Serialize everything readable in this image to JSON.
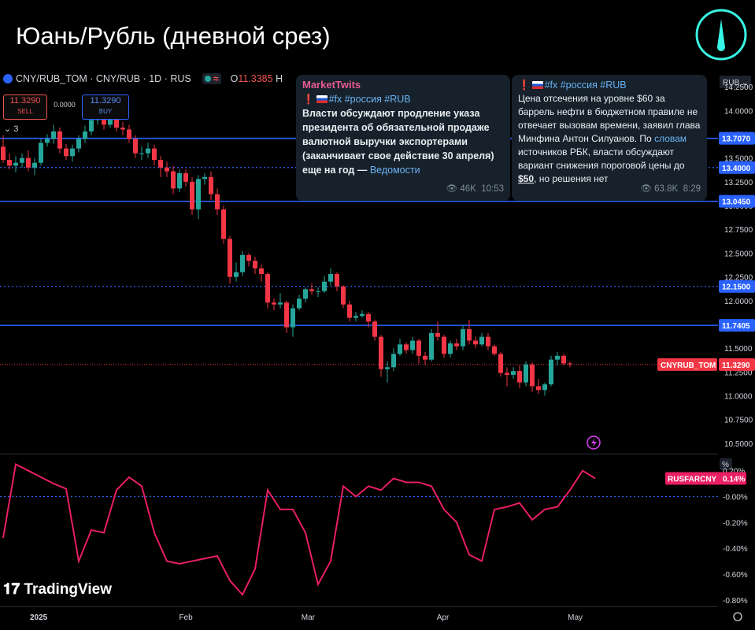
{
  "page_title": "Юань/Рубль (дневной срез)",
  "header": {
    "symbol": "CNY/RUB_TOM · CNY/RUB · 1D · RUS",
    "ohlc_prefix": "O",
    "ohlc_open": "11.3385",
    "ohlc_h": "H"
  },
  "trade": {
    "sell_price": "11.3290",
    "sell_label": "SELL",
    "spread": "0.0000",
    "buy_price": "11.3290",
    "buy_label": "BUY",
    "collapse_count": "3"
  },
  "messages": [
    {
      "author": "MarketTwits",
      "tags": "#fx #россия #RUB",
      "text": "Власти обсуждают продление указа президента об обязательной продаже валютной выручки экспортерами (заканчивает свое действие 30 апреля) еще на год —",
      "link_text": "Ведомости",
      "views": "46K",
      "time": "10:53"
    },
    {
      "tags": "#fx #россия #RUB",
      "text_part1": "Цена отсечения на уровне $60 за баррель нефти в бюджетном правиле не отвечает вызовам времени, заявил глава Минфина Антон Силуанов. По",
      "link_text": "словам",
      "text_part2": "источников РБК, власти обсуждают вариант снижения пороговой цены до",
      "highlight": "$50",
      "text_part3": ", но решения нет",
      "views": "63.8K",
      "time": "8:29"
    }
  ],
  "watermark": "TradingView",
  "colors": {
    "up": "#26a69a",
    "down": "#f23645",
    "level_line": "#2962ff",
    "indicator": "#e91e63",
    "last_price": "#f23645"
  },
  "chart_data": [
    {
      "type": "candlestick",
      "currency": "RUB",
      "ylim": [
        10.4,
        14.4
      ],
      "y_ticks": [
        "14.2500",
        "14.0000",
        "13.7500",
        "13.5000",
        "13.2500",
        "13.0000",
        "12.7500",
        "12.5000",
        "12.2500",
        "12.0000",
        "11.7500",
        "11.5000",
        "11.2500",
        "11.0000",
        "10.7500",
        "10.5000"
      ],
      "x_ticks": [
        {
          "label": "2025",
          "date": "2025-01-01"
        },
        {
          "label": "Feb",
          "date": "2025-02-01"
        },
        {
          "label": "Mar",
          "date": "2025-03-01"
        },
        {
          "label": "Apr",
          "date": "2025-04-01"
        },
        {
          "label": "May",
          "date": "2025-05-01"
        }
      ],
      "levels": [
        {
          "value": 13.707,
          "label": "13.7070",
          "style": "solid"
        },
        {
          "value": 13.4,
          "label": "13.4000",
          "style": "dashed"
        },
        {
          "value": 13.045,
          "label": "13.0450",
          "style": "solid"
        },
        {
          "value": 12.15,
          "label": "12.1500",
          "style": "dashed"
        },
        {
          "value": 11.7405,
          "label": "11.7405",
          "style": "solid"
        }
      ],
      "last_price": {
        "value": 11.329,
        "label": "11.3290",
        "name": "CNYRUB_TOM"
      },
      "candles": [
        {
          "date": "2024-12-26",
          "o": 13.62,
          "h": 13.74,
          "l": 13.45,
          "c": 13.48
        },
        {
          "date": "2024-12-27",
          "o": 13.48,
          "h": 13.55,
          "l": 13.38,
          "c": 13.42
        },
        {
          "date": "2024-12-28",
          "o": 13.42,
          "h": 13.52,
          "l": 13.35,
          "c": 13.45
        },
        {
          "date": "2024-12-30",
          "o": 13.45,
          "h": 13.55,
          "l": 13.4,
          "c": 13.5
        },
        {
          "date": "2025-01-03",
          "o": 13.5,
          "h": 13.58,
          "l": 13.36,
          "c": 13.4
        },
        {
          "date": "2025-01-06",
          "o": 13.4,
          "h": 13.5,
          "l": 13.32,
          "c": 13.45
        },
        {
          "date": "2025-01-08",
          "o": 13.45,
          "h": 13.7,
          "l": 13.42,
          "c": 13.66
        },
        {
          "date": "2025-01-09",
          "o": 13.66,
          "h": 13.75,
          "l": 13.62,
          "c": 13.7
        },
        {
          "date": "2025-01-10",
          "o": 13.7,
          "h": 13.85,
          "l": 13.65,
          "c": 13.78
        },
        {
          "date": "2025-01-13",
          "o": 13.78,
          "h": 13.82,
          "l": 13.55,
          "c": 13.6
        },
        {
          "date": "2025-01-14",
          "o": 13.6,
          "h": 13.65,
          "l": 13.48,
          "c": 13.52
        },
        {
          "date": "2025-01-15",
          "o": 13.52,
          "h": 13.64,
          "l": 13.46,
          "c": 13.6
        },
        {
          "date": "2025-01-16",
          "o": 13.6,
          "h": 13.74,
          "l": 13.56,
          "c": 13.7
        },
        {
          "date": "2025-01-17",
          "o": 13.7,
          "h": 13.84,
          "l": 13.66,
          "c": 13.78
        },
        {
          "date": "2025-01-20",
          "o": 13.78,
          "h": 13.95,
          "l": 13.74,
          "c": 13.9
        },
        {
          "date": "2025-01-21",
          "o": 13.9,
          "h": 14.0,
          "l": 13.85,
          "c": 13.95
        },
        {
          "date": "2025-01-22",
          "o": 13.95,
          "h": 13.98,
          "l": 13.8,
          "c": 13.85
        },
        {
          "date": "2025-01-23",
          "o": 13.85,
          "h": 13.95,
          "l": 13.82,
          "c": 13.92
        },
        {
          "date": "2025-01-24",
          "o": 13.92,
          "h": 13.96,
          "l": 13.78,
          "c": 13.82
        },
        {
          "date": "2025-01-27",
          "o": 13.82,
          "h": 13.88,
          "l": 13.74,
          "c": 13.8
        },
        {
          "date": "2025-01-28",
          "o": 13.8,
          "h": 13.85,
          "l": 13.66,
          "c": 13.7
        },
        {
          "date": "2025-01-29",
          "o": 13.7,
          "h": 13.74,
          "l": 13.5,
          "c": 13.55
        },
        {
          "date": "2025-01-30",
          "o": 13.55,
          "h": 13.62,
          "l": 13.48,
          "c": 13.55
        },
        {
          "date": "2025-01-31",
          "o": 13.55,
          "h": 13.66,
          "l": 13.5,
          "c": 13.6
        },
        {
          "date": "2025-02-03",
          "o": 13.6,
          "h": 13.64,
          "l": 13.42,
          "c": 13.48
        },
        {
          "date": "2025-02-04",
          "o": 13.48,
          "h": 13.52,
          "l": 13.3,
          "c": 13.4
        },
        {
          "date": "2025-02-05",
          "o": 13.4,
          "h": 13.46,
          "l": 13.3,
          "c": 13.36
        },
        {
          "date": "2025-02-06",
          "o": 13.36,
          "h": 13.42,
          "l": 13.12,
          "c": 13.18
        },
        {
          "date": "2025-02-07",
          "o": 13.18,
          "h": 13.38,
          "l": 13.14,
          "c": 13.34
        },
        {
          "date": "2025-02-10",
          "o": 13.34,
          "h": 13.38,
          "l": 13.2,
          "c": 13.25
        },
        {
          "date": "2025-02-11",
          "o": 13.25,
          "h": 13.3,
          "l": 12.9,
          "c": 12.96
        },
        {
          "date": "2025-02-12",
          "o": 12.96,
          "h": 13.32,
          "l": 12.86,
          "c": 13.28
        },
        {
          "date": "2025-02-13",
          "o": 13.28,
          "h": 13.34,
          "l": 13.22,
          "c": 13.3
        },
        {
          "date": "2025-02-14",
          "o": 13.3,
          "h": 13.36,
          "l": 13.06,
          "c": 13.12
        },
        {
          "date": "2025-02-17",
          "o": 13.12,
          "h": 13.18,
          "l": 12.9,
          "c": 12.96
        },
        {
          "date": "2025-02-18",
          "o": 12.96,
          "h": 13.0,
          "l": 12.6,
          "c": 12.65
        },
        {
          "date": "2025-02-19",
          "o": 12.65,
          "h": 12.68,
          "l": 12.18,
          "c": 12.25
        },
        {
          "date": "2025-02-20",
          "o": 12.25,
          "h": 12.4,
          "l": 12.2,
          "c": 12.3
        },
        {
          "date": "2025-02-21",
          "o": 12.3,
          "h": 12.52,
          "l": 12.26,
          "c": 12.48
        },
        {
          "date": "2025-02-24",
          "o": 12.48,
          "h": 12.5,
          "l": 12.36,
          "c": 12.42
        },
        {
          "date": "2025-02-25",
          "o": 12.42,
          "h": 12.46,
          "l": 12.28,
          "c": 12.34
        },
        {
          "date": "2025-02-26",
          "o": 12.34,
          "h": 12.38,
          "l": 12.2,
          "c": 12.28
        },
        {
          "date": "2025-02-27",
          "o": 12.28,
          "h": 12.3,
          "l": 11.92,
          "c": 11.98
        },
        {
          "date": "2025-02-28",
          "o": 11.98,
          "h": 12.02,
          "l": 11.9,
          "c": 11.96
        },
        {
          "date": "2025-03-03",
          "o": 11.96,
          "h": 12.08,
          "l": 11.92,
          "c": 11.98
        },
        {
          "date": "2025-03-04",
          "o": 11.98,
          "h": 12.0,
          "l": 11.66,
          "c": 11.72
        },
        {
          "date": "2025-03-05",
          "o": 11.72,
          "h": 11.96,
          "l": 11.62,
          "c": 11.92
        },
        {
          "date": "2025-03-06",
          "o": 11.92,
          "h": 12.06,
          "l": 11.9,
          "c": 12.02
        },
        {
          "date": "2025-03-07",
          "o": 12.02,
          "h": 12.14,
          "l": 11.98,
          "c": 12.12
        },
        {
          "date": "2025-03-10",
          "o": 12.12,
          "h": 12.18,
          "l": 12.06,
          "c": 12.1
        },
        {
          "date": "2025-03-11",
          "o": 12.1,
          "h": 12.14,
          "l": 12.04,
          "c": 12.1
        },
        {
          "date": "2025-03-12",
          "o": 12.1,
          "h": 12.26,
          "l": 12.08,
          "c": 12.2
        },
        {
          "date": "2025-03-13",
          "o": 12.2,
          "h": 12.34,
          "l": 12.16,
          "c": 12.28
        },
        {
          "date": "2025-03-14",
          "o": 12.28,
          "h": 12.3,
          "l": 12.1,
          "c": 12.15
        },
        {
          "date": "2025-03-17",
          "o": 12.15,
          "h": 12.16,
          "l": 11.92,
          "c": 11.96
        },
        {
          "date": "2025-03-18",
          "o": 11.96,
          "h": 12.0,
          "l": 11.78,
          "c": 11.82
        },
        {
          "date": "2025-03-19",
          "o": 11.82,
          "h": 11.88,
          "l": 11.78,
          "c": 11.84
        },
        {
          "date": "2025-03-20",
          "o": 11.84,
          "h": 11.9,
          "l": 11.82,
          "c": 11.86
        },
        {
          "date": "2025-03-21",
          "o": 11.86,
          "h": 11.88,
          "l": 11.72,
          "c": 11.78
        },
        {
          "date": "2025-03-24",
          "o": 11.78,
          "h": 11.8,
          "l": 11.58,
          "c": 11.62
        },
        {
          "date": "2025-03-25",
          "o": 11.62,
          "h": 11.64,
          "l": 11.2,
          "c": 11.28
        },
        {
          "date": "2025-03-26",
          "o": 11.28,
          "h": 11.36,
          "l": 11.14,
          "c": 11.3
        },
        {
          "date": "2025-03-27",
          "o": 11.3,
          "h": 11.5,
          "l": 11.26,
          "c": 11.44
        },
        {
          "date": "2025-03-28",
          "o": 11.44,
          "h": 11.6,
          "l": 11.42,
          "c": 11.54
        },
        {
          "date": "2025-03-31",
          "o": 11.54,
          "h": 11.56,
          "l": 11.44,
          "c": 11.48
        },
        {
          "date": "2025-04-01",
          "o": 11.48,
          "h": 11.62,
          "l": 11.44,
          "c": 11.58
        },
        {
          "date": "2025-04-02",
          "o": 11.58,
          "h": 11.6,
          "l": 11.34,
          "c": 11.42
        },
        {
          "date": "2025-04-03",
          "o": 11.42,
          "h": 11.46,
          "l": 11.32,
          "c": 11.38
        },
        {
          "date": "2025-04-04",
          "o": 11.38,
          "h": 11.7,
          "l": 11.36,
          "c": 11.66
        },
        {
          "date": "2025-04-07",
          "o": 11.66,
          "h": 11.78,
          "l": 11.58,
          "c": 11.62
        },
        {
          "date": "2025-04-08",
          "o": 11.62,
          "h": 11.64,
          "l": 11.4,
          "c": 11.44
        },
        {
          "date": "2025-04-09",
          "o": 11.44,
          "h": 11.58,
          "l": 11.4,
          "c": 11.55
        },
        {
          "date": "2025-04-10",
          "o": 11.55,
          "h": 11.6,
          "l": 11.48,
          "c": 11.52
        },
        {
          "date": "2025-04-11",
          "o": 11.52,
          "h": 11.74,
          "l": 11.48,
          "c": 11.7
        },
        {
          "date": "2025-04-14",
          "o": 11.7,
          "h": 11.8,
          "l": 11.54,
          "c": 11.58
        },
        {
          "date": "2025-04-15",
          "o": 11.58,
          "h": 11.62,
          "l": 11.5,
          "c": 11.54
        },
        {
          "date": "2025-04-16",
          "o": 11.54,
          "h": 11.66,
          "l": 11.52,
          "c": 11.62
        },
        {
          "date": "2025-04-17",
          "o": 11.62,
          "h": 11.66,
          "l": 11.48,
          "c": 11.52
        },
        {
          "date": "2025-04-18",
          "o": 11.52,
          "h": 11.54,
          "l": 11.42,
          "c": 11.44
        },
        {
          "date": "2025-04-21",
          "o": 11.44,
          "h": 11.46,
          "l": 11.2,
          "c": 11.24
        },
        {
          "date": "2025-04-22",
          "o": 11.24,
          "h": 11.3,
          "l": 11.1,
          "c": 11.22
        },
        {
          "date": "2025-04-23",
          "o": 11.22,
          "h": 11.3,
          "l": 11.18,
          "c": 11.26
        },
        {
          "date": "2025-04-24",
          "o": 11.26,
          "h": 11.32,
          "l": 11.08,
          "c": 11.14
        },
        {
          "date": "2025-04-25",
          "o": 11.14,
          "h": 11.36,
          "l": 11.1,
          "c": 11.33
        },
        {
          "date": "2025-04-28",
          "o": 11.33,
          "h": 11.35,
          "l": 11.04,
          "c": 11.1
        },
        {
          "date": "2025-04-29",
          "o": 11.1,
          "h": 11.18,
          "l": 11.02,
          "c": 11.06
        },
        {
          "date": "2025-04-30",
          "o": 11.06,
          "h": 11.14,
          "l": 11.0,
          "c": 11.12
        },
        {
          "date": "2025-05-02",
          "o": 11.12,
          "h": 11.42,
          "l": 11.1,
          "c": 11.38
        },
        {
          "date": "2025-05-05",
          "o": 11.38,
          "h": 11.46,
          "l": 11.32,
          "c": 11.42
        },
        {
          "date": "2025-05-06",
          "o": 11.42,
          "h": 11.44,
          "l": 11.32,
          "c": 11.34
        },
        {
          "date": "2025-05-07",
          "o": 11.34,
          "h": 11.36,
          "l": 11.3,
          "c": 11.33
        }
      ]
    },
    {
      "type": "line",
      "unit": "%",
      "name": "RUSFARCNY",
      "last_label": "0.14%",
      "ylim": [
        -0.85,
        0.32
      ],
      "y_ticks": [
        "0.20%",
        "-0.00%",
        "-0.20%",
        "-0.40%",
        "-0.60%",
        "-0.80%"
      ],
      "zero_line": true,
      "x": [
        0,
        2,
        4,
        6,
        8,
        10,
        12,
        14,
        16,
        18,
        20,
        22,
        24,
        26,
        28,
        30,
        32,
        34,
        36,
        38,
        40,
        42,
        44,
        46,
        48,
        50,
        52,
        54,
        56,
        58,
        60,
        62,
        64,
        66,
        68,
        70,
        72,
        74,
        76,
        78,
        80,
        82,
        84,
        86,
        88,
        90,
        92,
        94
      ],
      "values": [
        -0.32,
        0.25,
        0.2,
        0.15,
        0.1,
        0.06,
        -0.5,
        -0.26,
        -0.28,
        0.05,
        0.15,
        0.08,
        -0.28,
        -0.5,
        -0.52,
        -0.5,
        -0.48,
        -0.46,
        -0.65,
        -0.76,
        -0.56,
        0.05,
        -0.1,
        -0.1,
        -0.28,
        -0.68,
        -0.5,
        0.08,
        0.0,
        0.08,
        0.05,
        0.14,
        0.11,
        0.11,
        0.08,
        -0.1,
        -0.2,
        -0.45,
        -0.5,
        -0.1,
        -0.08,
        -0.05,
        -0.18,
        -0.1,
        -0.08,
        0.05,
        0.2,
        0.14
      ]
    }
  ]
}
